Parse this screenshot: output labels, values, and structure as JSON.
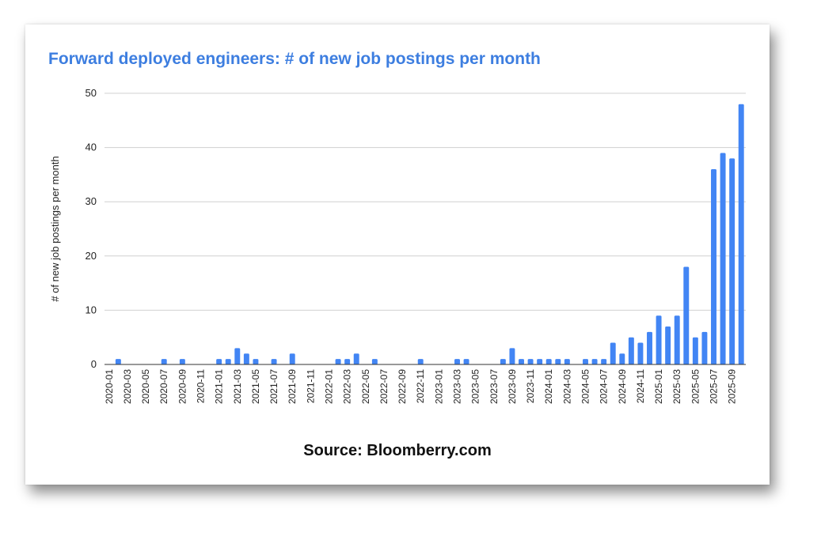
{
  "chart_data": {
    "type": "bar",
    "title": "Forward deployed engineers: # of new job postings per month",
    "ylabel": "# of new job postings per month",
    "xlabel": "",
    "ylim": [
      0,
      50
    ],
    "yticks": [
      0,
      10,
      20,
      30,
      40,
      50
    ],
    "grid": true,
    "legend": "none",
    "bar_color": "#4285f4",
    "categories": [
      "2020-01",
      "2020-02",
      "2020-03",
      "2020-04",
      "2020-05",
      "2020-06",
      "2020-07",
      "2020-08",
      "2020-09",
      "2020-10",
      "2020-11",
      "2020-12",
      "2021-01",
      "2021-02",
      "2021-03",
      "2021-04",
      "2021-05",
      "2021-06",
      "2021-07",
      "2021-08",
      "2021-09",
      "2021-10",
      "2021-11",
      "2021-12",
      "2022-01",
      "2022-02",
      "2022-03",
      "2022-04",
      "2022-05",
      "2022-06",
      "2022-07",
      "2022-08",
      "2022-09",
      "2022-10",
      "2022-11",
      "2022-12",
      "2023-01",
      "2023-02",
      "2023-03",
      "2023-04",
      "2023-05",
      "2023-06",
      "2023-07",
      "2023-08",
      "2023-09",
      "2023-10",
      "2023-11",
      "2023-12",
      "2024-01",
      "2024-02",
      "2024-03",
      "2024-04",
      "2024-05",
      "2024-06",
      "2024-07",
      "2024-08",
      "2024-09",
      "2024-10",
      "2024-11",
      "2024-12",
      "2025-01",
      "2025-02",
      "2025-03",
      "2025-04",
      "2025-05",
      "2025-06",
      "2025-07",
      "2025-08",
      "2025-09",
      "2025-10"
    ],
    "tick_labels": [
      "2020-01",
      "2020-03",
      "2020-05",
      "2020-07",
      "2020-09",
      "2020-11",
      "2021-01",
      "2021-03",
      "2021-05",
      "2021-07",
      "2021-09",
      "2021-11",
      "2022-01",
      "2022-03",
      "2022-05",
      "2022-07",
      "2022-09",
      "2022-11",
      "2023-01",
      "2023-03",
      "2023-05",
      "2023-07",
      "2023-09",
      "2023-11",
      "2024-01",
      "2024-03",
      "2024-05",
      "2024-07",
      "2024-09",
      "2024-11",
      "2025-01",
      "2025-03",
      "2025-05",
      "2025-07",
      "2025-09"
    ],
    "values": [
      0,
      1,
      0,
      0,
      0,
      0,
      1,
      0,
      1,
      0,
      0,
      0,
      1,
      1,
      3,
      2,
      1,
      0,
      1,
      0,
      2,
      0,
      0,
      0,
      0,
      1,
      1,
      2,
      0,
      1,
      0,
      0,
      0,
      0,
      1,
      0,
      0,
      0,
      1,
      1,
      0,
      0,
      0,
      1,
      3,
      1,
      1,
      1,
      1,
      1,
      1,
      0,
      1,
      1,
      1,
      4,
      2,
      5,
      4,
      6,
      9,
      7,
      9,
      18,
      5,
      6,
      36,
      39,
      38,
      48
    ]
  },
  "source_text": "Source: Bloomberry.com"
}
